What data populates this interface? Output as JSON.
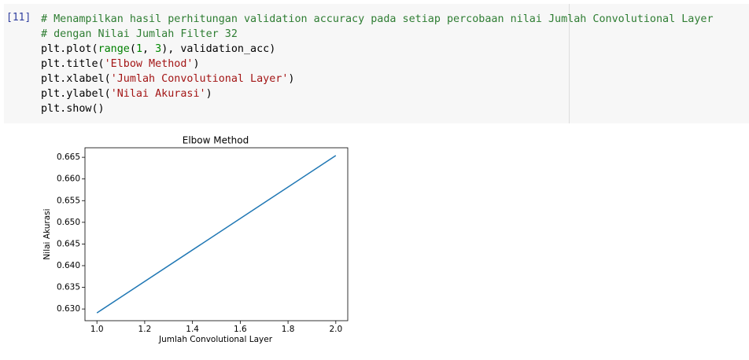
{
  "cell": {
    "prompt": "[11]",
    "lines": [
      [
        {
          "text": "# Menampilkan hasil perhitungan validation accuracy pada setiap percobaan nilai Jumlah Convolutional Layer",
          "color": "#2e7d32"
        }
      ],
      [
        {
          "text": "# dengan Nilai Jumlah Filter 32",
          "color": "#2e7d32"
        }
      ],
      [
        {
          "text": "plt.plot(",
          "color": "#000000"
        },
        {
          "text": "range",
          "color": "#008000"
        },
        {
          "text": "(",
          "color": "#000000"
        },
        {
          "text": "1",
          "color": "#008800"
        },
        {
          "text": ", ",
          "color": "#000000"
        },
        {
          "text": "3",
          "color": "#008800"
        },
        {
          "text": "), validation_acc)",
          "color": "#000000"
        }
      ],
      [
        {
          "text": "plt.title(",
          "color": "#000000"
        },
        {
          "text": "'Elbow Method'",
          "color": "#a31515"
        },
        {
          "text": ")",
          "color": "#000000"
        }
      ],
      [
        {
          "text": "plt.xlabel(",
          "color": "#000000"
        },
        {
          "text": "'Jumlah Convolutional Layer'",
          "color": "#a31515"
        },
        {
          "text": ")",
          "color": "#000000"
        }
      ],
      [
        {
          "text": "plt.ylabel(",
          "color": "#000000"
        },
        {
          "text": "'Nilai Akurasi'",
          "color": "#a31515"
        },
        {
          "text": ")",
          "color": "#000000"
        }
      ],
      [
        {
          "text": "plt.show()",
          "color": "#000000"
        }
      ]
    ]
  },
  "chart_data": {
    "type": "line",
    "title": "Elbow Method",
    "x_label": "Jumlah Convolutional Layer",
    "y_label": "Nilai Akurasi",
    "x": [
      1,
      2
    ],
    "values": [
      0.6291,
      0.6654
    ],
    "color": "#1f77b4",
    "xlim": [
      0.95,
      2.05
    ],
    "ylim": [
      0.6273,
      0.6672
    ],
    "xticks": [
      {
        "value": 1,
        "label": "1.0"
      },
      1.2,
      1.4,
      1.6,
      1.8,
      {
        "value": 2,
        "label": "2.0"
      }
    ],
    "yticks": [
      {
        "value": 0.63,
        "label": "0.630"
      },
      0.635,
      {
        "value": 0.64,
        "label": "0.640"
      },
      0.645,
      {
        "value": 0.65,
        "label": "0.650"
      },
      0.655,
      {
        "value": 0.66,
        "label": "0.660"
      },
      0.665
    ]
  }
}
